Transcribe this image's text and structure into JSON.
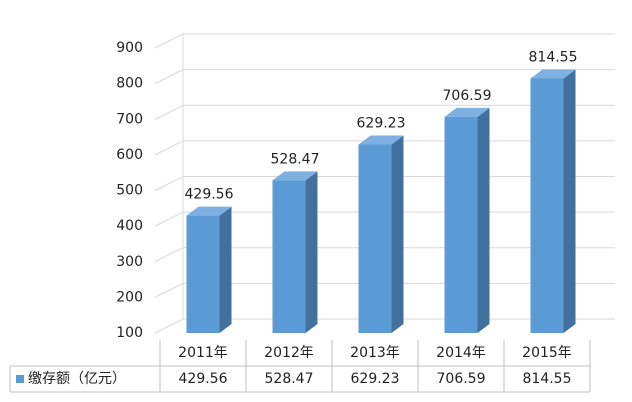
{
  "chart_data": {
    "type": "bar3d",
    "categories": [
      "2011年",
      "2012年",
      "2013年",
      "2014年",
      "2015年"
    ],
    "series": [
      {
        "name": "缴存额（亿元）",
        "color": "#5b9bd5",
        "values": [
          429.56,
          528.47,
          629.23,
          706.59,
          814.55
        ]
      }
    ],
    "ylim": [
      100,
      900
    ],
    "yticks": [
      100,
      200,
      300,
      400,
      500,
      600,
      700,
      800,
      900
    ],
    "grid": true,
    "legend": "table"
  }
}
